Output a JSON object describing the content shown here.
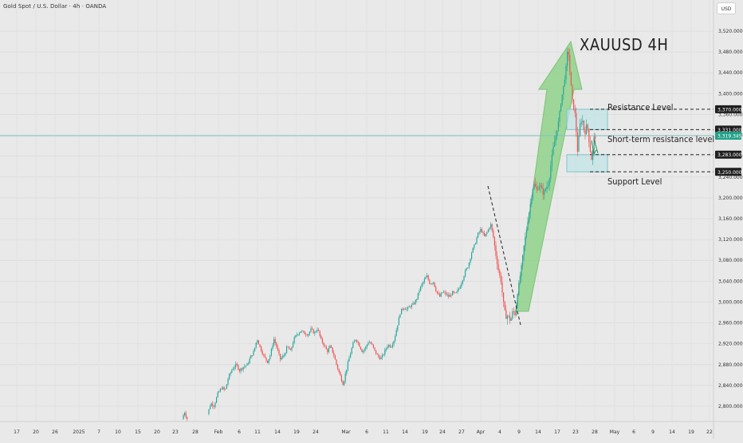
{
  "header": {
    "title": "Gold Spot / U.S. Dollar · 4h · OANDA",
    "currency": "USD"
  },
  "annotations": {
    "symbol": "XAUUSD  4H",
    "resistance": "Resistance Level",
    "short_term_resistance": "Short-term resistance level",
    "support": "Support Level"
  },
  "colors": {
    "background": "#e9e9e9",
    "candle_up": "#26a69a",
    "candle_down": "#ef5350",
    "arrow_fill": "#8fd28a",
    "zone_fill": "#bfe3e6",
    "zone_stroke": "#7fc6cc",
    "price_line": "#7fc4c0",
    "badge_dark": "#1e1e1e",
    "badge_current": "#22a187"
  },
  "chart_data": {
    "type": "candlestick",
    "instrument": "XAUUSD",
    "timeframe": "4h",
    "y_axis": {
      "range": [
        2775,
        3538
      ],
      "ticks": [
        2800,
        2840,
        2880,
        2920,
        2960,
        3000,
        3040,
        3080,
        3120,
        3160,
        3200,
        3240,
        3280,
        3320,
        3360,
        3400,
        3440,
        3480,
        3520
      ],
      "tick_labels": [
        "2,800.000",
        "2,840.000",
        "2,880.000",
        "2,920.000",
        "2,960.000",
        "3,000.000",
        "3,040.000",
        "3,080.000",
        "3,120.000",
        "3,160.000",
        "3,200.000",
        "3,240.000",
        "3,280.000",
        "3,320.000",
        "3,360.000",
        "3,400.000",
        "3,440.000",
        "3,480.000",
        "3,520.000"
      ]
    },
    "x_axis": {
      "tick_labels": [
        "17",
        "20",
        "26",
        "2025",
        "7",
        "10",
        "15",
        "20",
        "23",
        "28",
        "Feb",
        "6",
        "11",
        "14",
        "19",
        "24",
        "Mar",
        "6",
        "11",
        "14",
        "19",
        "24",
        "27",
        "Apr",
        "4",
        "9",
        "14",
        "17",
        "23",
        "28",
        "May",
        "6",
        "9",
        "14",
        "19",
        "22"
      ]
    },
    "price_levels": [
      {
        "label": "3,370.000",
        "value": 3370,
        "style": "dashed"
      },
      {
        "label": "3,331.000",
        "value": 3331,
        "style": "dashed"
      },
      {
        "label": "3,319.345",
        "value": 3319.345,
        "style": "current"
      },
      {
        "label": "3,283.000",
        "value": 3283,
        "style": "dashed"
      },
      {
        "label": "3,250.000",
        "value": 3250,
        "style": "dashed"
      }
    ],
    "zones": [
      {
        "name": "resistance-zone",
        "from": 3331,
        "to": 3370
      },
      {
        "name": "support-zone",
        "from": 3250,
        "to": 3283
      }
    ],
    "price_path": [
      {
        "x": 230,
        "v": 2775
      },
      {
        "x": 233,
        "v": 2790
      },
      {
        "x": 236,
        "v": 2776
      },
      {
        "x": 262,
        "v": 2785
      },
      {
        "x": 266,
        "v": 2806
      },
      {
        "x": 270,
        "v": 2801
      },
      {
        "x": 275,
        "v": 2825
      },
      {
        "x": 280,
        "v": 2836
      },
      {
        "x": 284,
        "v": 2830
      },
      {
        "x": 288,
        "v": 2855
      },
      {
        "x": 293,
        "v": 2872
      },
      {
        "x": 298,
        "v": 2880
      },
      {
        "x": 302,
        "v": 2869
      },
      {
        "x": 307,
        "v": 2876
      },
      {
        "x": 312,
        "v": 2880
      },
      {
        "x": 316,
        "v": 2895
      },
      {
        "x": 320,
        "v": 2905
      },
      {
        "x": 324,
        "v": 2930
      },
      {
        "x": 328,
        "v": 2912
      },
      {
        "x": 333,
        "v": 2895
      },
      {
        "x": 337,
        "v": 2885
      },
      {
        "x": 341,
        "v": 2900
      },
      {
        "x": 345,
        "v": 2930
      },
      {
        "x": 349,
        "v": 2912
      },
      {
        "x": 353,
        "v": 2890
      },
      {
        "x": 358,
        "v": 2898
      },
      {
        "x": 362,
        "v": 2915
      },
      {
        "x": 366,
        "v": 2905
      },
      {
        "x": 370,
        "v": 2928
      },
      {
        "x": 374,
        "v": 2938
      },
      {
        "x": 379,
        "v": 2945
      },
      {
        "x": 383,
        "v": 2940
      },
      {
        "x": 388,
        "v": 2938
      },
      {
        "x": 392,
        "v": 2948
      },
      {
        "x": 396,
        "v": 2940
      },
      {
        "x": 400,
        "v": 2950
      },
      {
        "x": 404,
        "v": 2928
      },
      {
        "x": 408,
        "v": 2918
      },
      {
        "x": 412,
        "v": 2905
      },
      {
        "x": 416,
        "v": 2915
      },
      {
        "x": 420,
        "v": 2900
      },
      {
        "x": 424,
        "v": 2878
      },
      {
        "x": 428,
        "v": 2860
      },
      {
        "x": 432,
        "v": 2842
      },
      {
        "x": 436,
        "v": 2870
      },
      {
        "x": 440,
        "v": 2895
      },
      {
        "x": 444,
        "v": 2918
      },
      {
        "x": 448,
        "v": 2930
      },
      {
        "x": 452,
        "v": 2918
      },
      {
        "x": 456,
        "v": 2905
      },
      {
        "x": 460,
        "v": 2912
      },
      {
        "x": 464,
        "v": 2925
      },
      {
        "x": 468,
        "v": 2918
      },
      {
        "x": 472,
        "v": 2905
      },
      {
        "x": 476,
        "v": 2895
      },
      {
        "x": 480,
        "v": 2892
      },
      {
        "x": 484,
        "v": 2905
      },
      {
        "x": 488,
        "v": 2918
      },
      {
        "x": 492,
        "v": 2915
      },
      {
        "x": 496,
        "v": 2928
      },
      {
        "x": 500,
        "v": 2955
      },
      {
        "x": 504,
        "v": 2982
      },
      {
        "x": 508,
        "v": 2990
      },
      {
        "x": 512,
        "v": 2986
      },
      {
        "x": 516,
        "v": 2992
      },
      {
        "x": 520,
        "v": 2995
      },
      {
        "x": 524,
        "v": 3005
      },
      {
        "x": 528,
        "v": 3025
      },
      {
        "x": 533,
        "v": 3040
      },
      {
        "x": 537,
        "v": 3050
      },
      {
        "x": 541,
        "v": 3035
      },
      {
        "x": 545,
        "v": 3040
      },
      {
        "x": 549,
        "v": 3020
      },
      {
        "x": 553,
        "v": 3010
      },
      {
        "x": 557,
        "v": 3020
      },
      {
        "x": 561,
        "v": 3015
      },
      {
        "x": 565,
        "v": 3010
      },
      {
        "x": 569,
        "v": 3018
      },
      {
        "x": 573,
        "v": 3015
      },
      {
        "x": 577,
        "v": 3025
      },
      {
        "x": 581,
        "v": 3040
      },
      {
        "x": 585,
        "v": 3058
      },
      {
        "x": 589,
        "v": 3070
      },
      {
        "x": 593,
        "v": 3095
      },
      {
        "x": 597,
        "v": 3110
      },
      {
        "x": 601,
        "v": 3130
      },
      {
        "x": 605,
        "v": 3140
      },
      {
        "x": 609,
        "v": 3125
      },
      {
        "x": 613,
        "v": 3135
      },
      {
        "x": 617,
        "v": 3150
      },
      {
        "x": 621,
        "v": 3120
      },
      {
        "x": 624,
        "v": 3085
      },
      {
        "x": 627,
        "v": 3060
      },
      {
        "x": 630,
        "v": 3040
      },
      {
        "x": 633,
        "v": 3000
      },
      {
        "x": 636,
        "v": 2970
      },
      {
        "x": 639,
        "v": 2975
      },
      {
        "x": 642,
        "v": 2962
      },
      {
        "x": 645,
        "v": 2985
      },
      {
        "x": 648,
        "v": 2975
      },
      {
        "x": 651,
        "v": 3020
      },
      {
        "x": 655,
        "v": 3060
      },
      {
        "x": 659,
        "v": 3110
      },
      {
        "x": 663,
        "v": 3150
      },
      {
        "x": 667,
        "v": 3190
      },
      {
        "x": 671,
        "v": 3228
      },
      {
        "x": 675,
        "v": 3215
      },
      {
        "x": 679,
        "v": 3225
      },
      {
        "x": 683,
        "v": 3208
      },
      {
        "x": 687,
        "v": 3220
      },
      {
        "x": 690,
        "v": 3228
      },
      {
        "x": 693,
        "v": 3270
      },
      {
        "x": 696,
        "v": 3300
      },
      {
        "x": 699,
        "v": 3320
      },
      {
        "x": 702,
        "v": 3345
      },
      {
        "x": 705,
        "v": 3380
      },
      {
        "x": 708,
        "v": 3410
      },
      {
        "x": 711,
        "v": 3440
      },
      {
        "x": 714,
        "v": 3492
      },
      {
        "x": 717,
        "v": 3430
      },
      {
        "x": 720,
        "v": 3380
      },
      {
        "x": 723,
        "v": 3360
      },
      {
        "x": 726,
        "v": 3290
      },
      {
        "x": 729,
        "v": 3340
      },
      {
        "x": 732,
        "v": 3352
      },
      {
        "x": 735,
        "v": 3320
      },
      {
        "x": 738,
        "v": 3345
      },
      {
        "x": 741,
        "v": 3300
      },
      {
        "x": 744,
        "v": 3270
      },
      {
        "x": 747,
        "v": 3319.345
      }
    ]
  }
}
